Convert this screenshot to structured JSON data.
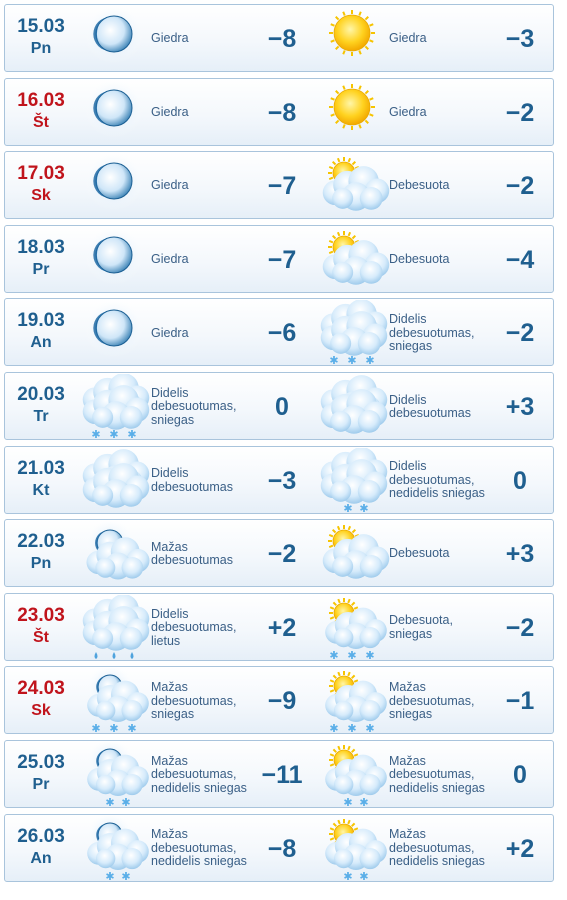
{
  "colors": {
    "date_normal": "#1f5f8f",
    "date_weekend": "#c0141c",
    "text": "#3a5f86",
    "border": "#a9c4dc"
  },
  "days": [
    {
      "date": "15.03",
      "dow": "Pn",
      "weekend": false,
      "night": {
        "icon": "clear-night-moon-icon",
        "desc": "Giedra",
        "temp": "−8"
      },
      "day": {
        "icon": "sun-icon",
        "desc": "Giedra",
        "temp": "−3"
      }
    },
    {
      "date": "16.03",
      "dow": "Št",
      "weekend": true,
      "night": {
        "icon": "clear-night-moon-icon",
        "desc": "Giedra",
        "temp": "−8"
      },
      "day": {
        "icon": "sun-icon",
        "desc": "Giedra",
        "temp": "−2"
      }
    },
    {
      "date": "17.03",
      "dow": "Sk",
      "weekend": true,
      "night": {
        "icon": "clear-night-moon-icon",
        "desc": "Giedra",
        "temp": "−7"
      },
      "day": {
        "icon": "sun-behind-cloud-icon",
        "desc": "Debesuota",
        "temp": "−2"
      }
    },
    {
      "date": "18.03",
      "dow": "Pr",
      "weekend": false,
      "night": {
        "icon": "clear-night-moon-icon",
        "desc": "Giedra",
        "temp": "−7"
      },
      "day": {
        "icon": "sun-behind-cloud-icon",
        "desc": "Debesuota",
        "temp": "−4"
      }
    },
    {
      "date": "19.03",
      "dow": "An",
      "weekend": false,
      "night": {
        "icon": "clear-night-moon-icon",
        "desc": "Giedra",
        "temp": "−6"
      },
      "day": {
        "icon": "overcast-snow-icon",
        "desc": "Didelis debesuotumas, sniegas",
        "temp": "−2"
      }
    },
    {
      "date": "20.03",
      "dow": "Tr",
      "weekend": false,
      "night": {
        "icon": "overcast-snow-icon",
        "desc": "Didelis debesuotumas, sniegas",
        "temp": "0"
      },
      "day": {
        "icon": "overcast-icon",
        "desc": "Didelis debesuotumas",
        "temp": "+3"
      }
    },
    {
      "date": "21.03",
      "dow": "Kt",
      "weekend": false,
      "night": {
        "icon": "overcast-icon",
        "desc": "Didelis debesuotumas",
        "temp": "−3"
      },
      "day": {
        "icon": "overcast-light-snow-icon",
        "desc": "Didelis debesuotumas, nedidelis sniegas",
        "temp": "0"
      }
    },
    {
      "date": "22.03",
      "dow": "Pn",
      "weekend": false,
      "night": {
        "icon": "moon-behind-cloud-icon",
        "desc": "Mažas debesuotumas",
        "temp": "−2"
      },
      "day": {
        "icon": "sun-behind-cloud-icon",
        "desc": "Debesuota",
        "temp": "+3"
      }
    },
    {
      "date": "23.03",
      "dow": "Št",
      "weekend": true,
      "night": {
        "icon": "overcast-rain-icon",
        "desc": "Didelis debesuotumas, lietus",
        "temp": "+2"
      },
      "day": {
        "icon": "sun-cloud-snow-icon",
        "desc": "Debesuota, sniegas",
        "temp": "−2"
      }
    },
    {
      "date": "24.03",
      "dow": "Sk",
      "weekend": true,
      "night": {
        "icon": "moon-cloud-snow-icon",
        "desc": "Mažas debesuotumas, sniegas",
        "temp": "−9"
      },
      "day": {
        "icon": "sun-cloud-snow-icon",
        "desc": "Mažas debesuotumas, sniegas",
        "temp": "−1"
      }
    },
    {
      "date": "25.03",
      "dow": "Pr",
      "weekend": false,
      "night": {
        "icon": "moon-cloud-light-snow-icon",
        "desc": "Mažas debesuotumas, nedidelis sniegas",
        "temp": "−11"
      },
      "day": {
        "icon": "sun-cloud-light-snow-icon",
        "desc": "Mažas debesuotumas, nedidelis sniegas",
        "temp": "0"
      }
    },
    {
      "date": "26.03",
      "dow": "An",
      "weekend": false,
      "night": {
        "icon": "moon-cloud-light-snow-icon",
        "desc": "Mažas debesuotumas, nedidelis sniegas",
        "temp": "−8"
      },
      "day": {
        "icon": "sun-cloud-light-snow-icon",
        "desc": "Mažas debesuotumas, nedidelis sniegas",
        "temp": "+2"
      }
    }
  ]
}
